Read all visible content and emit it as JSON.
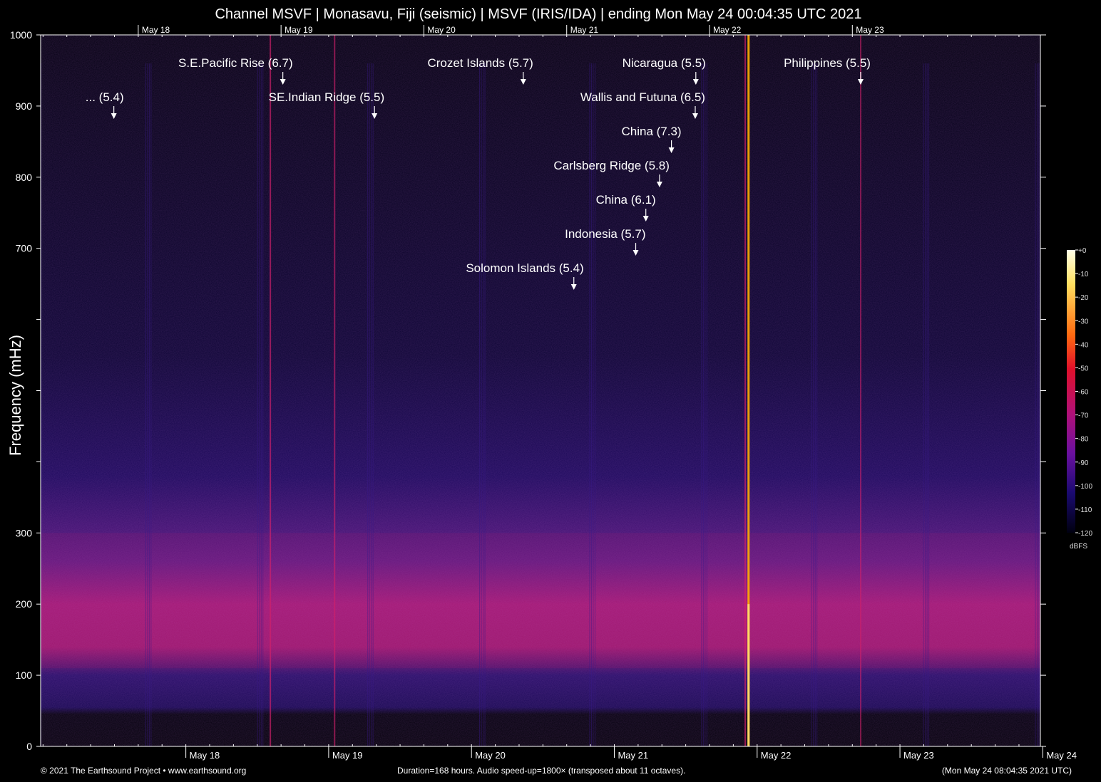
{
  "title": "Channel MSVF | Monasavu, Fiji (seismic) | MSVF (IRIS/IDA) | ending Mon May 24 00:04:35 UTC 2021",
  "footer": {
    "left": "© 2021 The Earthsound Project • www.earthsound.org",
    "center": "Duration=168 hours. Audio speed-up=1800× (transposed about 11 octaves).",
    "right": "(Mon May 24 08:04:35 2021 UTC)"
  },
  "colors": {
    "background": "#000000",
    "axis": "#ffffff",
    "noise_band": "#c2186b",
    "strong_event": "#ffb000"
  },
  "colorbar": {
    "unit": "dBFS",
    "ticks": [
      "+0",
      "-10",
      "-20",
      "-30",
      "-40",
      "-50",
      "-60",
      "-70",
      "-80",
      "-90",
      "-100",
      "-110",
      "-120"
    ],
    "range": [
      -120,
      0
    ]
  },
  "chart_data": {
    "type": "heatmap",
    "title": "Channel MSVF | Monasavu, Fiji (seismic) | MSVF (IRIS/IDA) | ending Mon May 24 00:04:35 UTC 2021",
    "xlabel": "",
    "ylabel": "Frequency (mHz)",
    "ylim": [
      0,
      1000
    ],
    "y_ticks": [
      {
        "value": 0,
        "label": "0"
      },
      {
        "value": 100,
        "label": "100"
      },
      {
        "value": 200,
        "label": "200"
      },
      {
        "value": 300,
        "label": "300"
      },
      {
        "value": 400,
        "label": ""
      },
      {
        "value": 500,
        "label": ""
      },
      {
        "value": 600,
        "label": ""
      },
      {
        "value": 700,
        "label": "700"
      },
      {
        "value": 800,
        "label": "800"
      },
      {
        "value": 900,
        "label": "900"
      },
      {
        "value": 1000,
        "label": "1000"
      }
    ],
    "xlim_hours": [
      0,
      168
    ],
    "x_ticks_bottom": [
      {
        "hour": 24.4,
        "label": "May 18"
      },
      {
        "hour": 48.4,
        "label": "May 19"
      },
      {
        "hour": 72.4,
        "label": "May 20"
      },
      {
        "hour": 96.4,
        "label": "May 21"
      },
      {
        "hour": 120.4,
        "label": "May 22"
      },
      {
        "hour": 144.4,
        "label": "May 23"
      },
      {
        "hour": 168.4,
        "label": "May 24"
      }
    ],
    "x_ticks_top": [
      {
        "hour": 16.4,
        "label": "May 18"
      },
      {
        "hour": 40.4,
        "label": "May 19"
      },
      {
        "hour": 64.4,
        "label": "May 20"
      },
      {
        "hour": 88.4,
        "label": "May 21"
      },
      {
        "hour": 112.4,
        "label": "May 22"
      },
      {
        "hour": 136.4,
        "label": "May 23"
      }
    ],
    "annotations": [
      {
        "label": "... (5.4)",
        "hour": 12.3,
        "level": 2
      },
      {
        "label": "S.E.Pacific Rise (6.7)",
        "hour": 40.7,
        "level": 1
      },
      {
        "label": "SE.Indian Ridge (5.5)",
        "hour": 56.1,
        "level": 2
      },
      {
        "label": "Crozet Islands (5.7)",
        "hour": 81.1,
        "level": 1
      },
      {
        "label": "Nicaragua (5.5)",
        "hour": 110.1,
        "level": 1
      },
      {
        "label": "Wallis and Futuna (6.5)",
        "hour": 110.0,
        "level": 2
      },
      {
        "label": "China (7.3)",
        "hour": 106.0,
        "level": 3
      },
      {
        "label": "Carlsberg Ridge (5.8)",
        "hour": 104.0,
        "level": 4
      },
      {
        "label": "China (6.1)",
        "hour": 101.7,
        "level": 5
      },
      {
        "label": "Indonesia (5.7)",
        "hour": 100.0,
        "level": 6
      },
      {
        "label": "Solomon Islands (5.4)",
        "hour": 89.6,
        "level": 7
      },
      {
        "label": "Philippines (5.5)",
        "hour": 137.8,
        "level": 1
      }
    ],
    "noise_band_mhz": [
      110,
      300
    ],
    "strong_events": [
      {
        "hour": 38.6,
        "strength": 0.6
      },
      {
        "hour": 49.4,
        "strength": 0.5
      },
      {
        "hour": 118.4,
        "strength": 0.6
      },
      {
        "hour": 118.9,
        "strength": 1.0
      },
      {
        "hour": 137.8,
        "strength": 0.4
      }
    ]
  }
}
